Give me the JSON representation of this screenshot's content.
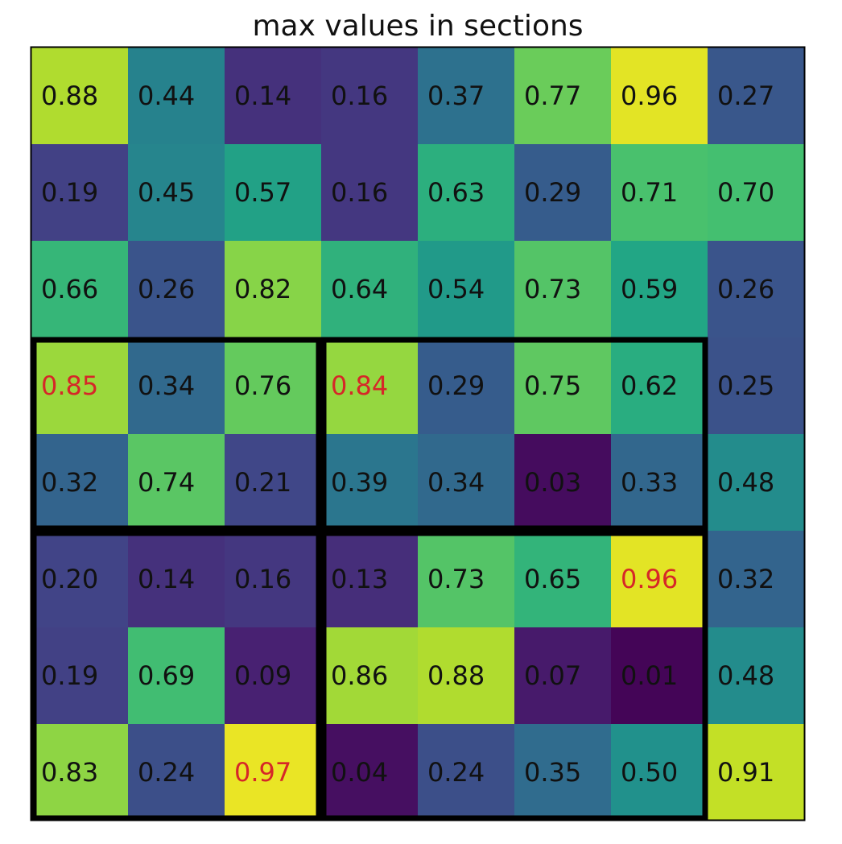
{
  "chart_data": {
    "type": "heatmap",
    "title": "max values in sections",
    "xlabel": "",
    "ylabel": "",
    "colormap": "viridis",
    "value_range": [
      0,
      1
    ],
    "grid": false,
    "rows": 8,
    "cols": 8,
    "cells": [
      [
        {
          "v": 0.88,
          "label": "0.88"
        },
        {
          "v": 0.44,
          "label": "0.44"
        },
        {
          "v": 0.14,
          "label": "0.14"
        },
        {
          "v": 0.16,
          "label": "0.16"
        },
        {
          "v": 0.37,
          "label": "0.37"
        },
        {
          "v": 0.77,
          "label": "0.77"
        },
        {
          "v": 0.96,
          "label": "0.96"
        },
        {
          "v": 0.27,
          "label": "0.27"
        }
      ],
      [
        {
          "v": 0.19,
          "label": "0.19"
        },
        {
          "v": 0.45,
          "label": "0.45"
        },
        {
          "v": 0.57,
          "label": "0.57"
        },
        {
          "v": 0.16,
          "label": "0.16"
        },
        {
          "v": 0.63,
          "label": "0.63"
        },
        {
          "v": 0.29,
          "label": "0.29"
        },
        {
          "v": 0.71,
          "label": "0.71"
        },
        {
          "v": 0.7,
          "label": "0.70"
        }
      ],
      [
        {
          "v": 0.66,
          "label": "0.66"
        },
        {
          "v": 0.26,
          "label": "0.26"
        },
        {
          "v": 0.82,
          "label": "0.82"
        },
        {
          "v": 0.64,
          "label": "0.64"
        },
        {
          "v": 0.54,
          "label": "0.54"
        },
        {
          "v": 0.73,
          "label": "0.73"
        },
        {
          "v": 0.59,
          "label": "0.59"
        },
        {
          "v": 0.26,
          "label": "0.26"
        }
      ],
      [
        {
          "v": 0.85,
          "label": "0.85"
        },
        {
          "v": 0.34,
          "label": "0.34"
        },
        {
          "v": 0.76,
          "label": "0.76"
        },
        {
          "v": 0.84,
          "label": "0.84"
        },
        {
          "v": 0.29,
          "label": "0.29"
        },
        {
          "v": 0.75,
          "label": "0.75"
        },
        {
          "v": 0.62,
          "label": "0.62"
        },
        {
          "v": 0.25,
          "label": "0.25"
        }
      ],
      [
        {
          "v": 0.32,
          "label": "0.32"
        },
        {
          "v": 0.74,
          "label": "0.74"
        },
        {
          "v": 0.21,
          "label": "0.21"
        },
        {
          "v": 0.39,
          "label": "0.39"
        },
        {
          "v": 0.34,
          "label": "0.34"
        },
        {
          "v": 0.03,
          "label": "0.03"
        },
        {
          "v": 0.33,
          "label": "0.33"
        },
        {
          "v": 0.48,
          "label": "0.48"
        }
      ],
      [
        {
          "v": 0.2,
          "label": "0.20"
        },
        {
          "v": 0.14,
          "label": "0.14"
        },
        {
          "v": 0.16,
          "label": "0.16"
        },
        {
          "v": 0.13,
          "label": "0.13"
        },
        {
          "v": 0.73,
          "label": "0.73"
        },
        {
          "v": 0.65,
          "label": "0.65"
        },
        {
          "v": 0.96,
          "label": "0.96"
        },
        {
          "v": 0.32,
          "label": "0.32"
        }
      ],
      [
        {
          "v": 0.19,
          "label": "0.19"
        },
        {
          "v": 0.69,
          "label": "0.69"
        },
        {
          "v": 0.09,
          "label": "0.09"
        },
        {
          "v": 0.86,
          "label": "0.86"
        },
        {
          "v": 0.88,
          "label": "0.88"
        },
        {
          "v": 0.07,
          "label": "0.07"
        },
        {
          "v": 0.01,
          "label": "0.01"
        },
        {
          "v": 0.48,
          "label": "0.48"
        }
      ],
      [
        {
          "v": 0.83,
          "label": "0.83"
        },
        {
          "v": 0.24,
          "label": "0.24"
        },
        {
          "v": 0.97,
          "label": "0.97"
        },
        {
          "v": 0.04,
          "label": "0.04"
        },
        {
          "v": 0.24,
          "label": "0.24"
        },
        {
          "v": 0.35,
          "label": "0.35"
        },
        {
          "v": 0.5,
          "label": "0.50"
        },
        {
          "v": 0.91,
          "label": "0.91"
        }
      ]
    ],
    "sections": [
      {
        "rows": [
          3,
          4
        ],
        "cols": [
          0,
          2
        ],
        "max": {
          "row": 3,
          "col": 0
        }
      },
      {
        "rows": [
          3,
          4
        ],
        "cols": [
          3,
          6
        ],
        "max": {
          "row": 3,
          "col": 3
        }
      },
      {
        "rows": [
          5,
          7
        ],
        "cols": [
          0,
          2
        ],
        "max": {
          "row": 7,
          "col": 2
        }
      },
      {
        "rows": [
          5,
          7
        ],
        "cols": [
          3,
          6
        ],
        "max": {
          "row": 5,
          "col": 6
        }
      }
    ],
    "label_color": "#111111",
    "highlight_color": "#d62728",
    "section_border_color": "#000000",
    "axes_border_color": "#000000"
  }
}
